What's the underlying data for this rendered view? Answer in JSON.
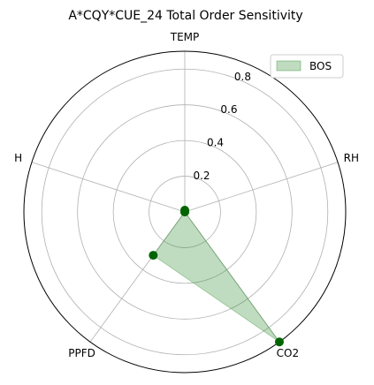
{
  "chart_data": {
    "type": "radar",
    "title": "A*CQY*CUE_24 Total Order Sensitivity",
    "axes": [
      "TEMP",
      "RH",
      "CO2",
      "PPFD",
      "H"
    ],
    "rmax": 0.9,
    "rticks": [
      0.2,
      0.4,
      0.6,
      0.8
    ],
    "rtick_labels": [
      "0.2",
      "0.4",
      "0.6",
      "0.8"
    ],
    "grid": true,
    "legend_position": "top-right",
    "series": [
      {
        "name": "BOS",
        "values": [
          0.01,
          0.0,
          0.9,
          0.3,
          0.0
        ],
        "fill_color": "#2e8b2e",
        "fill_opacity": 0.3,
        "marker_color": "#006400"
      }
    ]
  }
}
